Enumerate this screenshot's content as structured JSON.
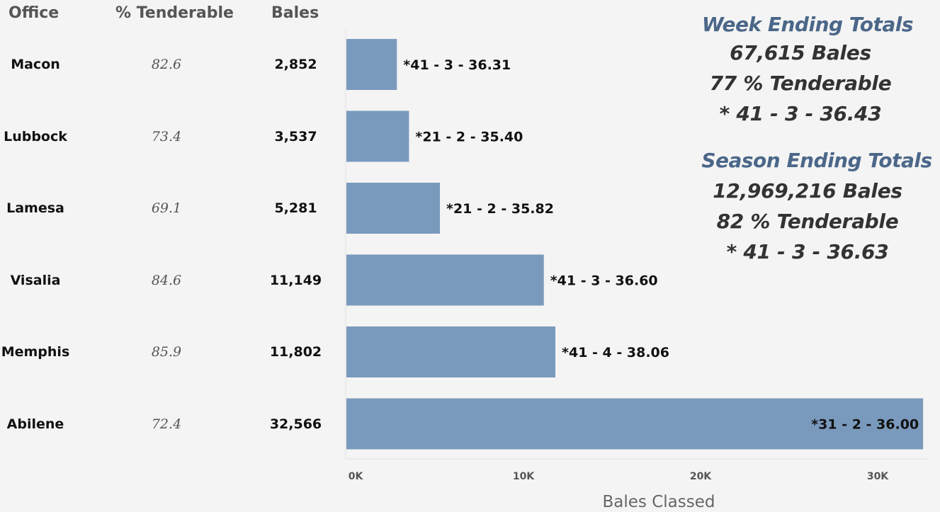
{
  "headers": {
    "office": "Office",
    "pct": "% Tenderable",
    "bales": "Bales"
  },
  "rows": [
    {
      "office": "Macon",
      "pct": "82.6",
      "bales": "2,852",
      "label": "*41 - 3 -  36.31"
    },
    {
      "office": "Lubbock",
      "pct": "73.4",
      "bales": "3,537",
      "label": "*21 - 2 -  35.40"
    },
    {
      "office": "Lamesa",
      "pct": "69.1",
      "bales": "5,281",
      "label": "*21 - 2 -  35.82"
    },
    {
      "office": "Visalia",
      "pct": "84.6",
      "bales": "11,149",
      "label": "*41 - 3 -  36.60"
    },
    {
      "office": "Memphis",
      "pct": "85.9",
      "bales": "11,802",
      "label": "*41 - 4 -  38.06"
    },
    {
      "office": "Abilene",
      "pct": "72.4",
      "bales": "32,566",
      "label": "*31 - 2 -  36.00"
    }
  ],
  "chart_data": {
    "type": "bar",
    "orientation": "horizontal",
    "categories": [
      "Macon",
      "Lubbock",
      "Lamesa",
      "Visalia",
      "Memphis",
      "Abilene"
    ],
    "values": [
      2852,
      3537,
      5281,
      11149,
      11802,
      32566
    ],
    "data_labels": [
      "*41 - 3 -  36.31",
      "*21 - 2 -  35.40",
      "*21 - 2 -  35.82",
      "*41 - 3 -  36.60",
      "*41 - 4 -  38.06",
      "*31 - 2 -  36.00"
    ],
    "xlabel": "Bales Classed",
    "xticks": [
      0,
      10000,
      20000,
      30000
    ],
    "xtick_labels": [
      "0K",
      "10K",
      "20K",
      "30K"
    ],
    "xlim": [
      0,
      33000
    ],
    "bar_color": "#7a9abd",
    "grid": false
  },
  "summary": {
    "week_title": "Week Ending Totals",
    "week_bales": "67,615 Bales",
    "week_tenderable": "77 % Tenderable",
    "week_grade": "* 41 - 3 - 36.43",
    "season_title": "Season Ending Totals",
    "season_bales": "12,969,216 Bales",
    "season_tenderable": "82 % Tenderable",
    "season_grade": "* 41 - 3 - 36.63"
  }
}
